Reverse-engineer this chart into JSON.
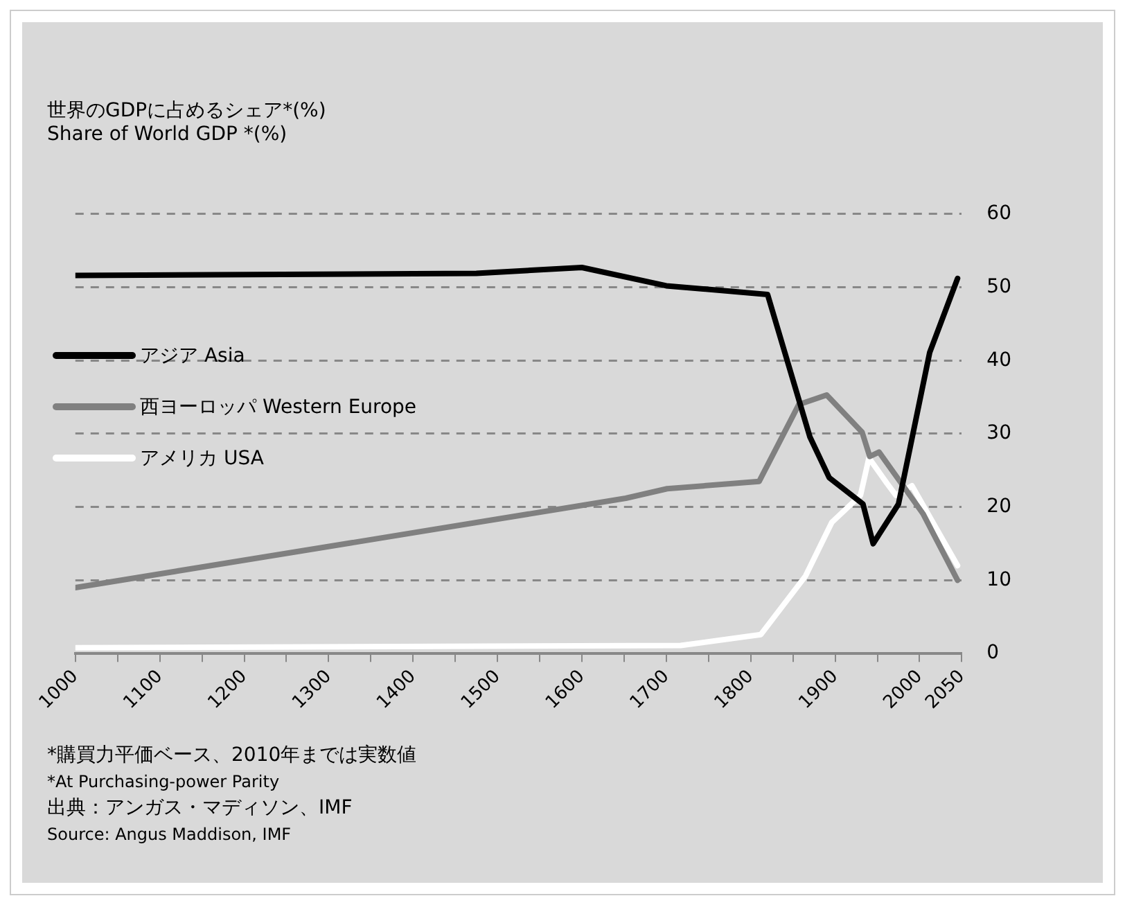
{
  "chart_data": {
    "type": "line",
    "title": "世界のGDPに占めるシェア*(%)",
    "subtitle": "Share of World GDP *(%)",
    "annotations": [
      "*購買力平価ベース、2010年までは実数値",
      "*At Purchasing-power Parity",
      "出典：アンガス・マディソン、IMF",
      "Source: Angus Maddison, IMF"
    ],
    "series": [
      {
        "name": "アジア Asia",
        "color": "#000000",
        "x": [
          1000,
          1475,
          1600,
          1700,
          1820,
          1870,
          1893,
          1933,
          1945,
          1975,
          2012,
          2045
        ],
        "values": [
          51.6,
          51.9,
          52.7,
          50.2,
          49.0,
          29.6,
          24.0,
          20.4,
          15.0,
          20.4,
          41.1,
          51.2
        ]
      },
      {
        "name": "西ヨーロッパ Western Europe",
        "color": "#808080",
        "x": [
          1000,
          1652,
          1701,
          1810,
          1857,
          1890,
          1932,
          1941,
          1952,
          2004,
          2045
        ],
        "values": [
          9.0,
          21.2,
          22.5,
          23.5,
          34.0,
          35.3,
          30.2,
          26.9,
          27.5,
          19.1,
          10.0
        ]
      },
      {
        "name": "アメリカ USA",
        "color": "#ffffff",
        "x": [
          1000,
          1717,
          1812,
          1865,
          1896,
          1930,
          1940,
          1961,
          1972,
          1991,
          2045
        ],
        "values": [
          0.8,
          1.1,
          2.6,
          10.6,
          17.9,
          21.6,
          26.7,
          23.3,
          21.6,
          22.9,
          12.0
        ]
      }
    ],
    "xlim": [
      1000,
      2050
    ],
    "xticks": [
      1000,
      {
        "value": 1050,
        "label": null
      },
      1100,
      {
        "value": 1150,
        "label": null
      },
      1200,
      {
        "value": 1250,
        "label": null
      },
      1300,
      {
        "value": 1350,
        "label": null
      },
      1400,
      {
        "value": 1450,
        "label": null
      },
      1500,
      {
        "value": 1550,
        "label": null
      },
      1600,
      {
        "value": 1650,
        "label": null
      },
      1700,
      {
        "value": 1750,
        "label": null
      },
      1800,
      {
        "value": 1850,
        "label": null
      },
      1900,
      {
        "value": 1950,
        "label": null
      },
      2000,
      2050
    ],
    "ylim": [
      0,
      60
    ],
    "yticks": [
      0,
      10,
      20,
      30,
      40,
      50,
      60
    ],
    "grid": "y",
    "legend": "left",
    "marker": "none",
    "line_style": "solid"
  }
}
